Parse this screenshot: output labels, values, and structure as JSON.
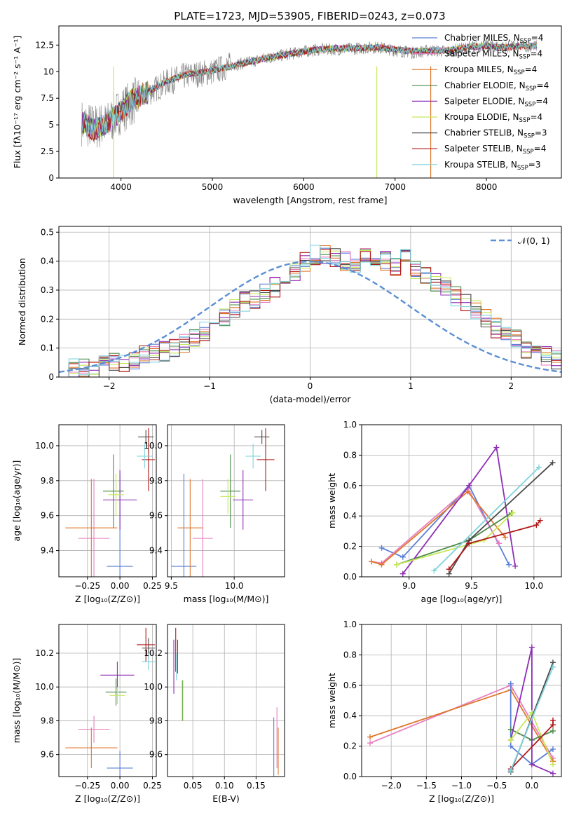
{
  "series_legend": [
    {
      "name": "Chabrier MILES, N",
      "sub": "SSP",
      "eq": "=4",
      "color": "#5b7fd6"
    },
    {
      "name": "Salpeter MILES, N",
      "sub": "SSP",
      "eq": "=4",
      "color": "#e87fc0"
    },
    {
      "name": "Kroupa MILES, N",
      "sub": "SSP",
      "eq": "=4",
      "color": "#e0762a"
    },
    {
      "name": "Chabrier ELODIE, N",
      "sub": "SSP",
      "eq": "=4",
      "color": "#4a8a4a"
    },
    {
      "name": "Salpeter ELODIE, N",
      "sub": "SSP",
      "eq": "=4",
      "color": "#8e2fb5"
    },
    {
      "name": "Kroupa ELODIE, N",
      "sub": "SSP",
      "eq": "=4",
      "color": "#c6e85a"
    },
    {
      "name": "Chabrier STELIB, N",
      "sub": "SSP",
      "eq": "=3",
      "color": "#4a4a4a"
    },
    {
      "name": "Salpeter STELIB, N",
      "sub": "SSP",
      "eq": "=4",
      "color": "#b01818"
    },
    {
      "name": "Kroupa STELIB, N",
      "sub": "SSP",
      "eq": "=3",
      "color": "#7fd3dc"
    }
  ],
  "chart_data": [
    {
      "id": "spectrum",
      "type": "line",
      "title": "PLATE=1723, MJD=53905, FIBERID=0243, z=0.073",
      "xlabel": "wavelength [Angstrom, rest frame]",
      "ylabel": "Flux [fλ10⁻¹⁷ erg cm⁻² s⁻¹ A⁻¹]",
      "xlim": [
        3320,
        8820
      ],
      "ylim": [
        0,
        14.3
      ],
      "xticks": [
        4000,
        5000,
        6000,
        7000,
        8000
      ],
      "yticks": [
        0.0,
        2.5,
        5.0,
        7.5,
        10.0,
        12.5
      ],
      "data_series": {
        "name": "data",
        "color": "#808080",
        "x": [
          3570,
          3700,
          3850,
          3950,
          4100,
          4300,
          4500,
          4700,
          5000,
          5200,
          5400,
          5600,
          5800,
          6000,
          6200,
          6400,
          6600,
          6800,
          7000,
          7200,
          7400,
          7600,
          7800,
          8000,
          8200,
          8400,
          8550
        ],
        "y": [
          5.2,
          4.8,
          5.0,
          6.0,
          7.0,
          8.0,
          9.0,
          9.6,
          10.0,
          10.6,
          10.9,
          11.3,
          11.6,
          11.9,
          12.1,
          12.1,
          12.2,
          12.3,
          12.0,
          11.8,
          12.0,
          11.9,
          12.3,
          12.5,
          12.3,
          12.4,
          12.4
        ]
      },
      "model_series": {
        "name": "models",
        "color": "#7fd3dc",
        "x": [
          3570,
          3700,
          3850,
          3950,
          4100,
          4300,
          4500,
          4700,
          5000,
          5200,
          5400,
          5600,
          5800,
          6000,
          6200,
          6400,
          6600,
          6800,
          7000,
          7200,
          7400,
          7600,
          7800,
          8000,
          8200,
          8400,
          8550
        ],
        "y": [
          5.3,
          4.5,
          5.2,
          5.9,
          7.2,
          8.1,
          9.1,
          9.7,
          10.1,
          10.5,
          10.9,
          11.3,
          11.6,
          11.9,
          12.1,
          12.2,
          12.2,
          12.3,
          12.1,
          11.9,
          12.0,
          12.0,
          12.3,
          12.4,
          12.3,
          12.4,
          12.4
        ]
      }
    },
    {
      "id": "residuals",
      "type": "histogram",
      "xlabel": "(data-model)/error",
      "ylabel": "Normed distribution",
      "xlim": [
        -2.5,
        2.5
      ],
      "ylim": [
        0,
        0.52
      ],
      "xticks": [
        -2,
        -1,
        0,
        1,
        2
      ],
      "yticks": [
        0.0,
        0.1,
        0.2,
        0.3,
        0.4,
        0.5
      ],
      "grid": true,
      "legend_label": "𝒩(0, 1)",
      "legend_position": "top-right",
      "normal_curve": {
        "mean": 0,
        "sigma": 1,
        "color": "#5b8fd6"
      },
      "bin_width": 0.1,
      "bins_start": -2.5,
      "hist_values": [
        0.03,
        0.03,
        0.03,
        0.03,
        0.04,
        0.05,
        0.05,
        0.06,
        0.08,
        0.08,
        0.09,
        0.1,
        0.12,
        0.14,
        0.16,
        0.19,
        0.21,
        0.24,
        0.26,
        0.27,
        0.29,
        0.31,
        0.34,
        0.36,
        0.4,
        0.42,
        0.42,
        0.41,
        0.4,
        0.39,
        0.43,
        0.4,
        0.4,
        0.38,
        0.41,
        0.37,
        0.35,
        0.33,
        0.31,
        0.28,
        0.26,
        0.23,
        0.2,
        0.17,
        0.15,
        0.13,
        0.1,
        0.09,
        0.07,
        0.06,
        0.05
      ]
    },
    {
      "id": "age-vs-z",
      "type": "scatter",
      "xlabel": "Z [log₁₀(Z/Z⊙)]",
      "ylabel": "age  [log₁₀(age/yr)]",
      "xlim": [
        -0.47,
        0.28
      ],
      "ylim": [
        9.25,
        10.12
      ],
      "xticks": [
        -0.25,
        0.0,
        0.25
      ],
      "xticklabels": [
        "−0.25",
        "0.00",
        "0.25"
      ],
      "yticks": [
        9.4,
        9.6,
        9.8,
        10.0
      ],
      "yticklabels": [
        "9.4",
        "9.6",
        "9.8",
        "10.0"
      ],
      "points": [
        {
          "x": 0.0,
          "y": 9.31,
          "ex": 0.1,
          "ey": 0.53,
          "color": "#5b7fd6"
        },
        {
          "x": -0.2,
          "y": 9.47,
          "ex": 0.12,
          "ey": 0.34,
          "color": "#e87fc0"
        },
        {
          "x": -0.22,
          "y": 9.53,
          "ex": 0.2,
          "ey": 0.28,
          "color": "#e0762a"
        },
        {
          "x": -0.05,
          "y": 9.74,
          "ex": 0.08,
          "ey": 0.21,
          "color": "#4a8a4a"
        },
        {
          "x": 0.0,
          "y": 9.69,
          "ex": 0.13,
          "ey": 0.17,
          "color": "#8e2fb5"
        },
        {
          "x": -0.03,
          "y": 9.72,
          "ex": 0.06,
          "ey": 0.12,
          "color": "#c6e85a"
        },
        {
          "x": 0.2,
          "y": 10.05,
          "ex": 0.06,
          "ey": 0.04,
          "color": "#4a4a4a"
        },
        {
          "x": 0.22,
          "y": 9.92,
          "ex": 0.05,
          "ey": 0.18,
          "color": "#b01818"
        },
        {
          "x": 0.19,
          "y": 9.94,
          "ex": 0.06,
          "ey": 0.07,
          "color": "#7fd3dc"
        }
      ]
    },
    {
      "id": "age-vs-mass",
      "type": "scatter",
      "xlabel": "mass [log₁₀(M/M⊙)]",
      "ylabel": "",
      "xlim": [
        9.47,
        10.4
      ],
      "ylim": [
        9.25,
        10.12
      ],
      "xticks": [
        9.5,
        10.0
      ],
      "xticklabels": [
        "9.5",
        "10.0"
      ],
      "yticks": [
        9.4,
        9.6,
        9.8,
        10.0
      ],
      "yticklabels": [
        "9.4",
        "9.6",
        "9.8",
        "10.0"
      ],
      "points": [
        {
          "x": 9.6,
          "y": 9.31,
          "ex": 0.1,
          "ey": 0.53,
          "color": "#5b7fd6"
        },
        {
          "x": 9.75,
          "y": 9.47,
          "ex": 0.08,
          "ey": 0.34,
          "color": "#e87fc0"
        },
        {
          "x": 9.65,
          "y": 9.53,
          "ex": 0.1,
          "ey": 0.28,
          "color": "#e0762a"
        },
        {
          "x": 9.97,
          "y": 9.74,
          "ex": 0.08,
          "ey": 0.21,
          "color": "#4a8a4a"
        },
        {
          "x": 10.07,
          "y": 9.69,
          "ex": 0.08,
          "ey": 0.17,
          "color": "#8e2fb5"
        },
        {
          "x": 9.95,
          "y": 9.71,
          "ex": 0.06,
          "ey": 0.1,
          "color": "#c6e85a"
        },
        {
          "x": 10.22,
          "y": 10.05,
          "ex": 0.06,
          "ey": 0.04,
          "color": "#4a4a4a"
        },
        {
          "x": 10.25,
          "y": 9.92,
          "ex": 0.07,
          "ey": 0.18,
          "color": "#b01818"
        },
        {
          "x": 10.15,
          "y": 9.94,
          "ex": 0.06,
          "ey": 0.07,
          "color": "#7fd3dc"
        }
      ]
    },
    {
      "id": "mass-weight-vs-age",
      "type": "line",
      "xlabel": "age  [log₁₀(age/yr)]",
      "ylabel": "mass weight",
      "xlim": [
        8.62,
        10.22
      ],
      "ylim": [
        0.0,
        1.0
      ],
      "xticks": [
        9.0,
        9.5,
        10.0
      ],
      "xticklabels": [
        "9.0",
        "9.5",
        "10.0"
      ],
      "yticks": [
        0.0,
        0.2,
        0.4,
        0.6,
        0.8,
        1.0
      ],
      "yticklabels": [
        "0.0",
        "0.2",
        "0.4",
        "0.6",
        "0.8",
        "1.0"
      ],
      "grid": true,
      "series": [
        {
          "color": "#5b7fd6",
          "x": [
            8.78,
            8.95,
            9.48,
            9.8
          ],
          "y": [
            0.19,
            0.13,
            0.6,
            0.08
          ]
        },
        {
          "color": "#e87fc0",
          "x": [
            8.7,
            8.78,
            9.47,
            9.72
          ],
          "y": [
            0.1,
            0.09,
            0.58,
            0.22
          ]
        },
        {
          "color": "#e0762a",
          "x": [
            8.7,
            8.78,
            9.47,
            9.77
          ],
          "y": [
            0.1,
            0.08,
            0.56,
            0.26
          ]
        },
        {
          "color": "#4a8a4a",
          "x": [
            8.9,
            9.48,
            9.82
          ],
          "y": [
            0.08,
            0.24,
            0.42
          ]
        },
        {
          "color": "#8e2fb5",
          "x": [
            8.95,
            9.48,
            9.7,
            9.85
          ],
          "y": [
            0.02,
            0.6,
            0.85,
            0.07
          ]
        },
        {
          "color": "#c6e85a",
          "x": [
            8.9,
            9.6,
            9.83
          ],
          "y": [
            0.08,
            0.24,
            0.42
          ]
        },
        {
          "color": "#4a4a4a",
          "x": [
            9.32,
            9.48,
            10.15
          ],
          "y": [
            0.02,
            0.24,
            0.75
          ]
        },
        {
          "color": "#b01818",
          "x": [
            9.32,
            9.48,
            10.02,
            10.05
          ],
          "y": [
            0.05,
            0.22,
            0.34,
            0.37
          ]
        },
        {
          "color": "#7fd3dc",
          "x": [
            9.2,
            10.04
          ],
          "y": [
            0.04,
            0.72
          ]
        }
      ]
    },
    {
      "id": "mass-vs-z",
      "type": "scatter",
      "xlabel": "Z [log₁₀(Z/Z⊙)]",
      "ylabel": "mass [log₁₀(M/M⊙)]",
      "xlim": [
        -0.47,
        0.28
      ],
      "ylim": [
        9.47,
        10.37
      ],
      "xticks": [
        -0.25,
        0.0,
        0.25
      ],
      "xticklabels": [
        "−0.25",
        "0.00",
        "0.25"
      ],
      "yticks": [
        9.6,
        9.8,
        10.0,
        10.2
      ],
      "yticklabels": [
        "9.6",
        "9.8",
        "10.0",
        "10.2"
      ],
      "points": [
        {
          "x": 0.0,
          "y": 9.52,
          "ex": 0.1,
          "ey": 0.1,
          "color": "#5b7fd6"
        },
        {
          "x": -0.2,
          "y": 9.75,
          "ex": 0.12,
          "ey": 0.08,
          "color": "#e87fc0"
        },
        {
          "x": -0.22,
          "y": 9.64,
          "ex": 0.2,
          "ey": 0.12,
          "color": "#e0762a"
        },
        {
          "x": -0.03,
          "y": 9.97,
          "ex": 0.08,
          "ey": 0.08,
          "color": "#4a8a4a"
        },
        {
          "x": -0.02,
          "y": 10.07,
          "ex": 0.13,
          "ey": 0.08,
          "color": "#8e2fb5"
        },
        {
          "x": -0.02,
          "y": 9.95,
          "ex": 0.06,
          "ey": 0.05,
          "color": "#c6e85a"
        },
        {
          "x": 0.22,
          "y": 10.23,
          "ex": 0.05,
          "ey": 0.06,
          "color": "#4a4a4a"
        },
        {
          "x": 0.2,
          "y": 10.25,
          "ex": 0.07,
          "ey": 0.1,
          "color": "#b01818"
        },
        {
          "x": 0.22,
          "y": 10.15,
          "ex": 0.05,
          "ey": 0.05,
          "color": "#7fd3dc"
        }
      ]
    },
    {
      "id": "mass-vs-ebv",
      "type": "scatter",
      "xlabel": "E(B-V)",
      "ylabel": "",
      "xlim": [
        0.01,
        0.195
      ],
      "ylim": [
        9.47,
        10.37
      ],
      "xticks": [
        0.05,
        0.1,
        0.15
      ],
      "xticklabels": [
        "0.05",
        "0.10",
        "0.15"
      ],
      "yticks": [
        9.6,
        9.8,
        10.0,
        10.2
      ],
      "yticklabels": [
        "9.6",
        "9.8",
        "10.0",
        "10.2"
      ],
      "points": [
        {
          "x": 0.178,
          "y": 9.6,
          "ex": 0.0,
          "ey": 0.22,
          "color": "#5b7fd6"
        },
        {
          "x": 0.183,
          "y": 9.7,
          "ex": 0.0,
          "ey": 0.18,
          "color": "#e87fc0"
        },
        {
          "x": 0.185,
          "y": 9.62,
          "ex": 0.0,
          "ey": 0.14,
          "color": "#e0762a"
        },
        {
          "x": 0.034,
          "y": 9.92,
          "ex": 0.0,
          "ey": 0.12,
          "color": "#4a8a4a"
        },
        {
          "x": 0.02,
          "y": 10.12,
          "ex": 0.0,
          "ey": 0.16,
          "color": "#8e2fb5"
        },
        {
          "x": 0.033,
          "y": 9.92,
          "ex": 0.0,
          "ey": 0.12,
          "color": "#c6e85a"
        },
        {
          "x": 0.026,
          "y": 10.18,
          "ex": 0.0,
          "ey": 0.1,
          "color": "#4a4a4a"
        },
        {
          "x": 0.023,
          "y": 10.22,
          "ex": 0.0,
          "ey": 0.13,
          "color": "#b01818"
        },
        {
          "x": 0.024,
          "y": 10.12,
          "ex": 0.0,
          "ey": 0.08,
          "color": "#7fd3dc"
        }
      ]
    },
    {
      "id": "mass-weight-vs-z",
      "type": "line",
      "xlabel": "Z [log₁₀(Z/Z⊙)]",
      "ylabel": "mass weight",
      "xlim": [
        -2.42,
        0.42
      ],
      "ylim": [
        0.0,
        1.0
      ],
      "xticks": [
        -2.0,
        -1.5,
        -1.0,
        -0.5,
        0.0
      ],
      "xticklabels": [
        "−2.0",
        "−1.5",
        "−1.0",
        "−0.5",
        "0.0"
      ],
      "yticks": [
        0.0,
        0.2,
        0.4,
        0.6,
        0.8,
        1.0
      ],
      "yticklabels": [
        "0.0",
        "0.2",
        "0.4",
        "0.6",
        "0.8",
        "1.0"
      ],
      "grid": true,
      "series": [
        {
          "color": "#e87fc0",
          "x": [
            -2.3,
            -0.3,
            0.3
          ],
          "y": [
            0.22,
            0.6,
            0.12
          ]
        },
        {
          "color": "#e0762a",
          "x": [
            -2.3,
            -0.3,
            0.3
          ],
          "y": [
            0.26,
            0.57,
            0.1
          ]
        },
        {
          "color": "#5b7fd6",
          "x": [
            -0.3,
            -0.3,
            0.0,
            0.3
          ],
          "y": [
            0.61,
            0.2,
            0.08,
            0.18
          ]
        },
        {
          "color": "#4a8a4a",
          "x": [
            -0.3,
            0.0,
            0.3
          ],
          "y": [
            0.31,
            0.24,
            0.3
          ]
        },
        {
          "color": "#8e2fb5",
          "x": [
            -0.3,
            0.0,
            0.0,
            0.3
          ],
          "y": [
            0.24,
            0.85,
            0.08,
            0.02
          ]
        },
        {
          "color": "#c6e85a",
          "x": [
            -0.3,
            0.0,
            0.3
          ],
          "y": [
            0.24,
            0.42,
            0.08
          ]
        },
        {
          "color": "#4a4a4a",
          "x": [
            -0.3,
            0.3
          ],
          "y": [
            0.03,
            0.75
          ]
        },
        {
          "color": "#b01818",
          "x": [
            -0.3,
            0.3,
            0.3
          ],
          "y": [
            0.05,
            0.34,
            0.37
          ]
        },
        {
          "color": "#7fd3dc",
          "x": [
            -0.3,
            0.3
          ],
          "y": [
            0.04,
            0.72
          ]
        }
      ]
    }
  ]
}
